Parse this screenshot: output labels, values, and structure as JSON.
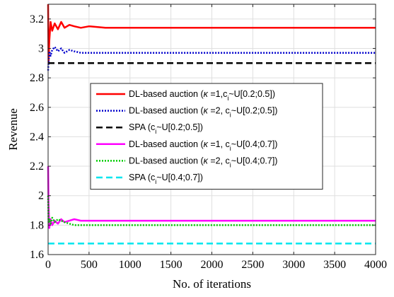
{
  "chart_data": {
    "type": "line",
    "xlabel": "No. of iterations",
    "ylabel": "Revenue",
    "xlim": [
      0,
      4000
    ],
    "ylim": [
      1.6,
      3.3
    ],
    "x_ticks": [
      0,
      500,
      1000,
      1500,
      2000,
      2500,
      3000,
      3500,
      4000
    ],
    "x_tick_labels": [
      "0",
      "500",
      "1000",
      "1500",
      "2000",
      "2500",
      "3000",
      "3500",
      "4000"
    ],
    "y_ticks": [
      1.6,
      1.8,
      2.0,
      2.2,
      2.4,
      2.6,
      2.8,
      3.0,
      3.2
    ],
    "y_tick_labels": [
      "1.6",
      "1.8",
      "2",
      "2.2",
      "2.4",
      "2.6",
      "2.8",
      "3",
      "3.2"
    ],
    "grid": true,
    "legend_position": "center-right",
    "series": [
      {
        "legend": {
          "pre": "DL-based auction (",
          "kappa": "κ",
          "mid": " =1,c",
          "sub": "i",
          "post": "~U[0.2;0.5])"
        },
        "color": "#ff0000",
        "style": "solid",
        "x": [
          0,
          5,
          15,
          30,
          50,
          80,
          120,
          160,
          200,
          260,
          320,
          400,
          500,
          700,
          1000,
          1500,
          2000,
          2500,
          3000,
          3500,
          4000
        ],
        "y": [
          3.3,
          2.9,
          3.05,
          3.18,
          3.12,
          3.17,
          3.13,
          3.18,
          3.14,
          3.16,
          3.15,
          3.14,
          3.15,
          3.14,
          3.14,
          3.14,
          3.14,
          3.14,
          3.14,
          3.14,
          3.14
        ]
      },
      {
        "legend": {
          "pre": "DL-based auction (",
          "kappa": "κ",
          "mid": " =2, c",
          "sub": "i",
          "post": "~U[0.2;0.5])"
        },
        "color": "#0000cc",
        "style": "dotted",
        "x": [
          0,
          5,
          15,
          30,
          50,
          80,
          120,
          160,
          200,
          260,
          320,
          400,
          500,
          700,
          1000,
          1500,
          2000,
          2500,
          3000,
          3500,
          4000
        ],
        "y": [
          2.85,
          2.9,
          2.98,
          2.95,
          2.99,
          3.01,
          2.98,
          3.0,
          2.97,
          2.99,
          2.98,
          2.97,
          2.97,
          2.97,
          2.97,
          2.97,
          2.97,
          2.97,
          2.97,
          2.97,
          2.97
        ]
      },
      {
        "legend": {
          "pre": "SPA (c",
          "kappa": "",
          "mid": "",
          "sub": "i",
          "post": "~U[0.2;0.5])"
        },
        "color": "#000000",
        "style": "dashed",
        "x": [
          0,
          4000
        ],
        "y": [
          2.9,
          2.9
        ]
      },
      {
        "legend": {
          "pre": "DL-based auction (",
          "kappa": "κ",
          "mid": " =1, c",
          "sub": "i",
          "post": "~U[0.4;0.7])"
        },
        "color": "#ff00ff",
        "style": "solid",
        "x": [
          0,
          5,
          15,
          30,
          50,
          80,
          120,
          160,
          200,
          260,
          320,
          400,
          500,
          700,
          1000,
          1500,
          2000,
          2500,
          3000,
          3500,
          4000
        ],
        "y": [
          2.2,
          1.95,
          1.78,
          1.84,
          1.8,
          1.83,
          1.81,
          1.84,
          1.82,
          1.83,
          1.84,
          1.83,
          1.83,
          1.83,
          1.83,
          1.83,
          1.83,
          1.83,
          1.83,
          1.83,
          1.83
        ]
      },
      {
        "legend": {
          "pre": "DL-based auction (",
          "kappa": "κ",
          "mid": " =2, c",
          "sub": "i",
          "post": "~U[0.4;0.7])"
        },
        "color": "#00cc00",
        "style": "dotted",
        "x": [
          0,
          5,
          15,
          30,
          50,
          80,
          120,
          160,
          200,
          260,
          320,
          400,
          500,
          700,
          1000,
          1500,
          2000,
          2500,
          3000,
          3500,
          4000
        ],
        "y": [
          2.0,
          1.82,
          1.84,
          1.81,
          1.85,
          1.82,
          1.84,
          1.83,
          1.82,
          1.81,
          1.8,
          1.8,
          1.8,
          1.8,
          1.8,
          1.8,
          1.8,
          1.8,
          1.8,
          1.8,
          1.8
        ]
      },
      {
        "legend": {
          "pre": "SPA (c",
          "kappa": "",
          "mid": "",
          "sub": "i",
          "post": "~U[0.4;0.7])"
        },
        "color": "#00e5ee",
        "style": "dashed",
        "x": [
          0,
          4000
        ],
        "y": [
          1.675,
          1.675
        ]
      }
    ]
  }
}
